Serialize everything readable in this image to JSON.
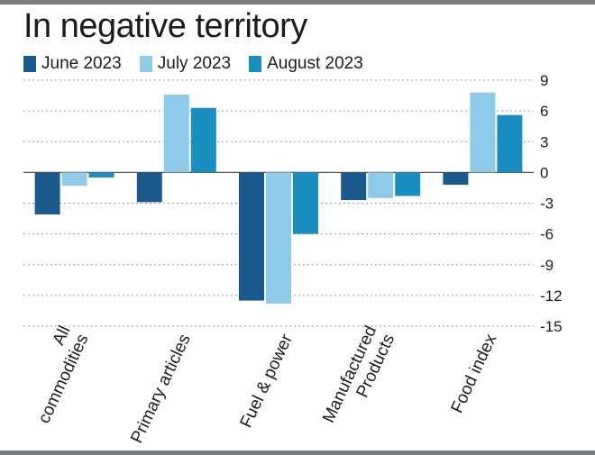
{
  "chart_data": {
    "type": "bar",
    "title": "In negative territory",
    "categories": [
      "All commodities",
      "Primary articles",
      "Fuel & power",
      "Manufactured Products",
      "Food index"
    ],
    "category_lines": [
      [
        "All",
        "commodities"
      ],
      [
        "Primary articles"
      ],
      [
        "Fuel & power"
      ],
      [
        "Manufactured",
        "Products"
      ],
      [
        "Food index"
      ]
    ],
    "series": [
      {
        "name": "June 2023",
        "color": "#1a5a8c",
        "values": [
          -4.1,
          -2.9,
          -12.5,
          -2.7,
          -1.2
        ]
      },
      {
        "name": "July 2023",
        "color": "#8ecbe8",
        "values": [
          -1.3,
          7.6,
          -12.8,
          -2.5,
          7.8
        ]
      },
      {
        "name": "August 2023",
        "color": "#1a8fbf",
        "values": [
          -0.5,
          6.3,
          -6.0,
          -2.3,
          5.6
        ]
      }
    ],
    "yticks": [
      9,
      6,
      3,
      0,
      -3,
      -6,
      -9,
      -12,
      -15
    ],
    "ylim": [
      -15,
      9
    ],
    "grid": true,
    "legend_position": "top-left"
  }
}
